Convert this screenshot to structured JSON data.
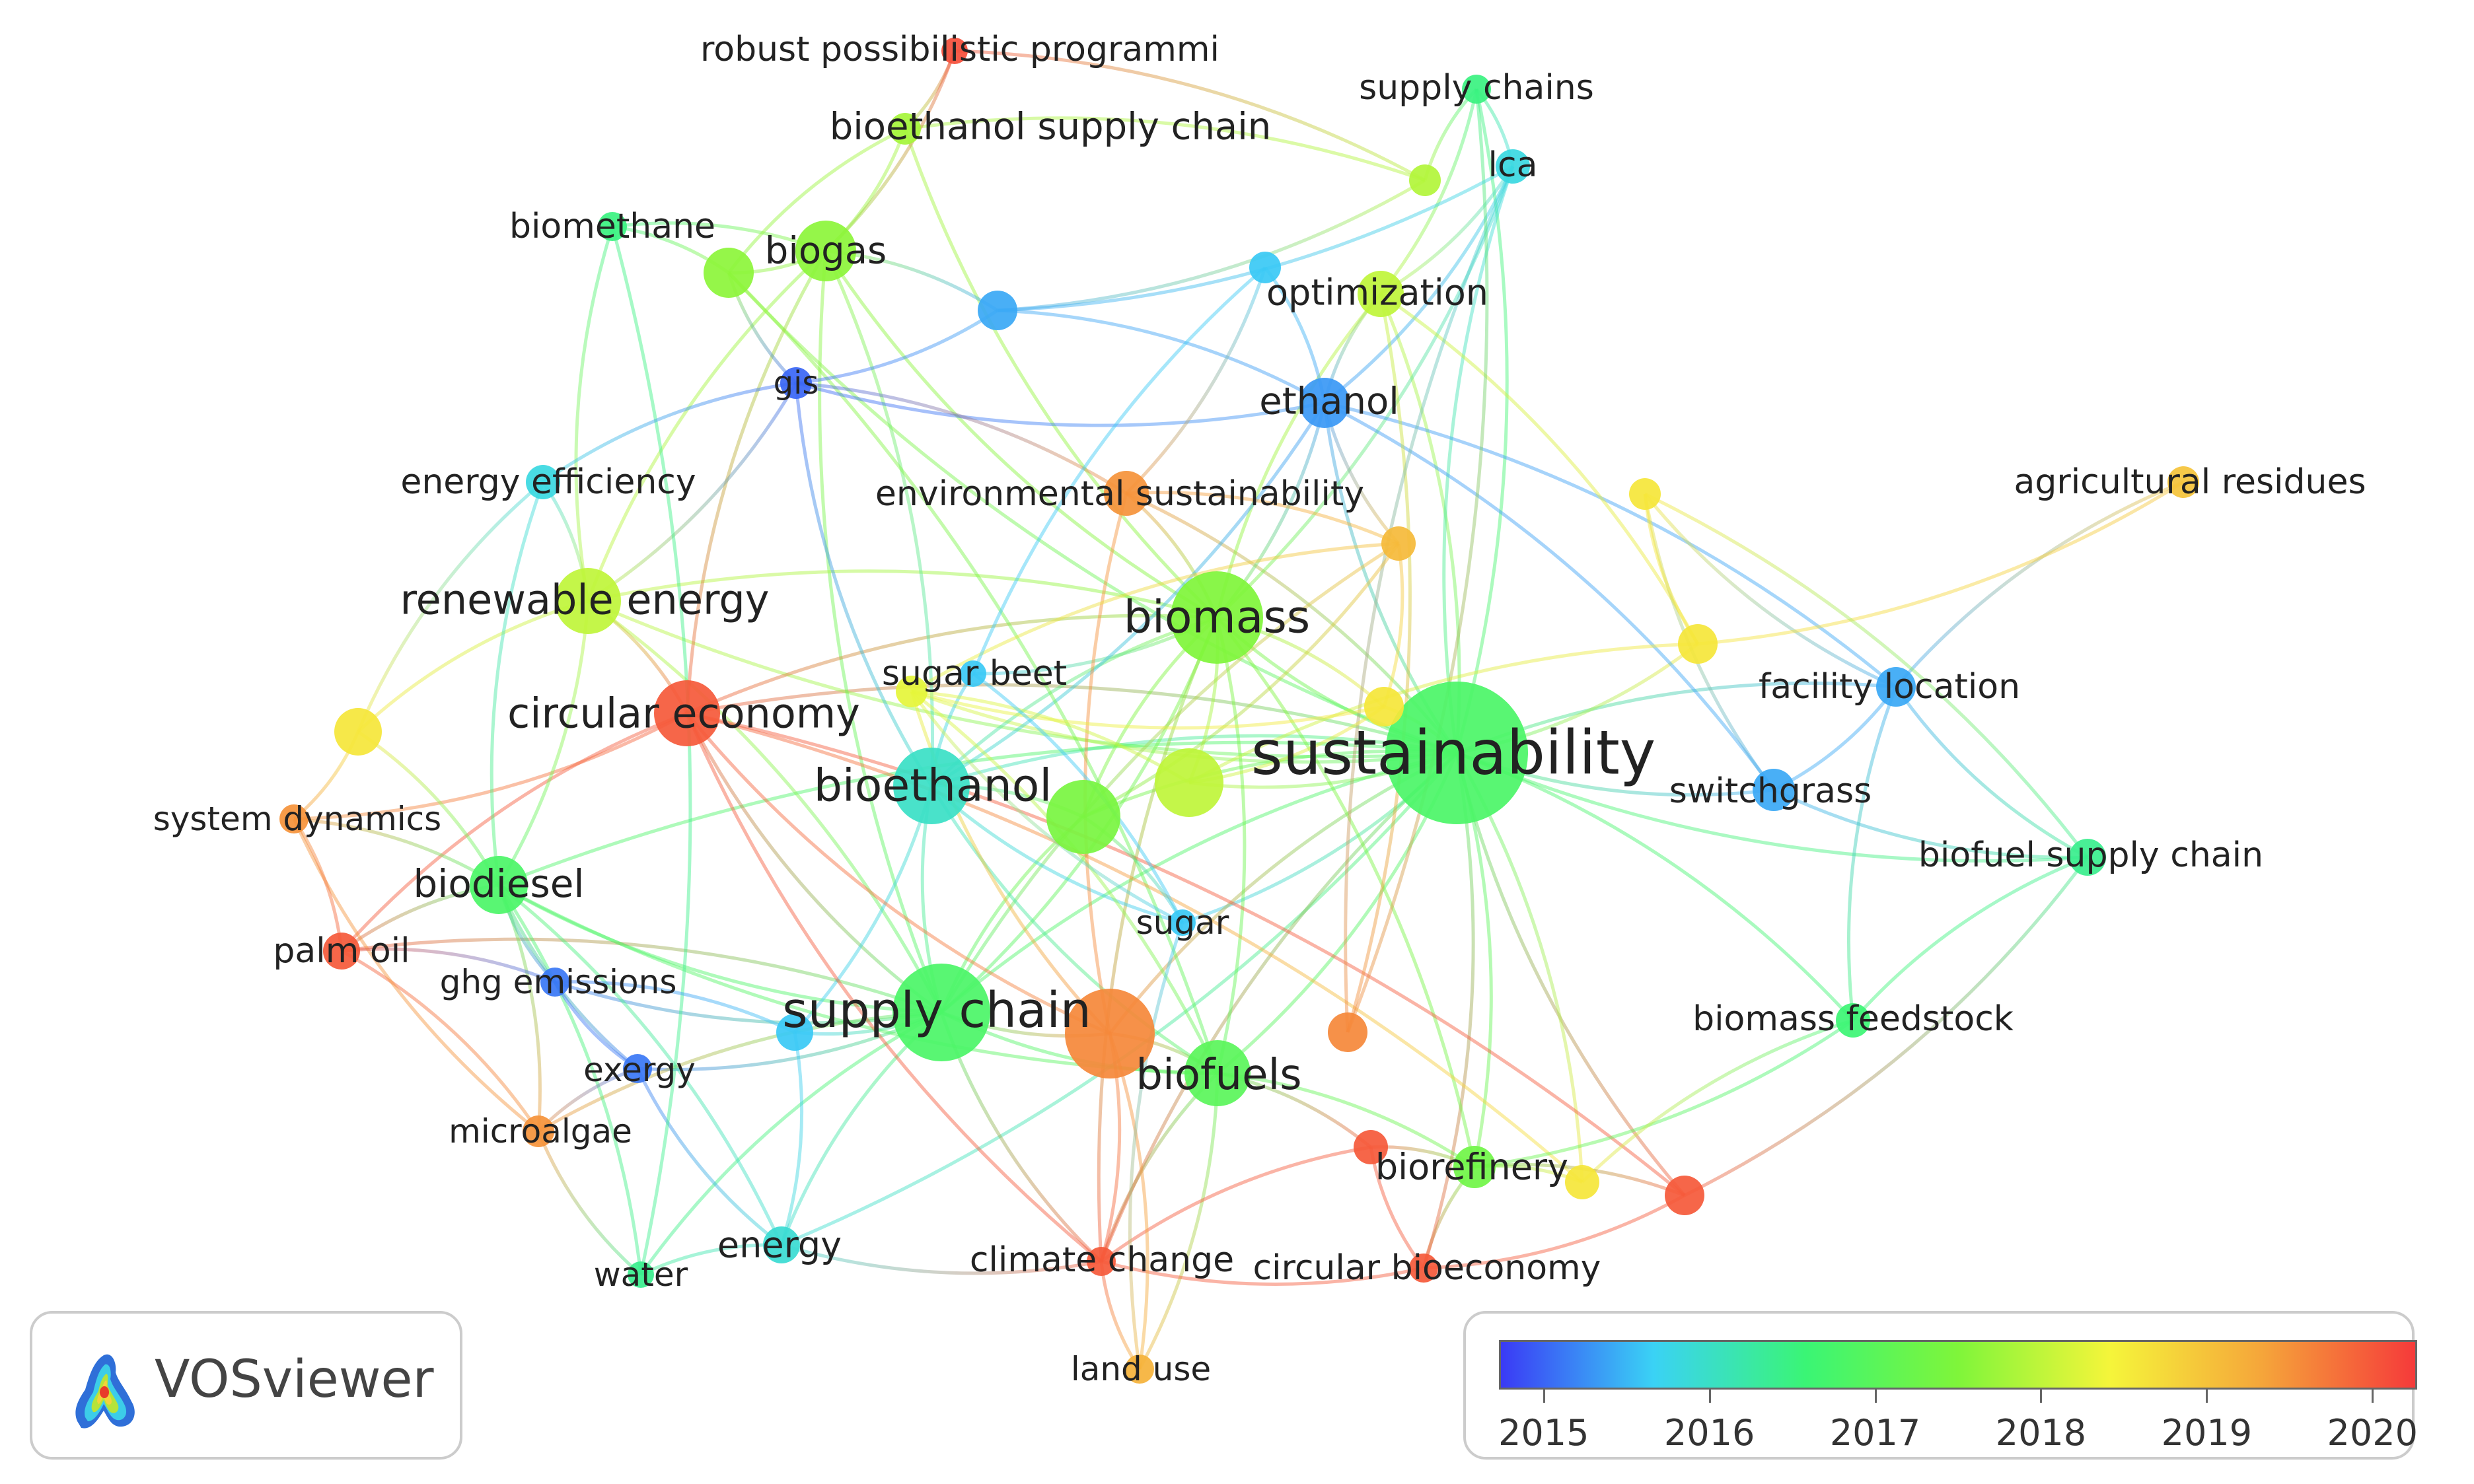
{
  "logo": {
    "text": "VOSviewer",
    "icon": "vosviewer-logo-icon"
  },
  "legend": {
    "labels": [
      "2015",
      "2016",
      "2017",
      "2018",
      "2019",
      "2020"
    ],
    "min": 2014.73,
    "max": 2020.27,
    "colors": [
      "#3a3af5",
      "#3ad2f5",
      "#3af575",
      "#7ff53a",
      "#f5f53a",
      "#f5a53a",
      "#f53a3a"
    ]
  },
  "chart_data": {
    "type": "network",
    "nodes": [
      {
        "id": "sustainability",
        "label": "sustainability",
        "score": 2016.8
      },
      {
        "id": "supply chain",
        "label": "supply chain",
        "score": 2016.8
      },
      {
        "id": "biomass",
        "label": "biomass",
        "score": 2017.5
      },
      {
        "id": "bioethanol",
        "label": "bioethanol",
        "score": 2016.0
      },
      {
        "id": "biofuels",
        "label": "biofuels",
        "score": 2017.0
      },
      {
        "id": "circular economy",
        "label": "circular economy",
        "score": 2020.0
      },
      {
        "id": "renewable energy",
        "label": "renewable energy",
        "score": 2018.0
      },
      {
        "id": "biodiesel",
        "label": "biodiesel",
        "score": 2016.8
      },
      {
        "id": "biogas",
        "label": "biogas",
        "score": 2017.6
      },
      {
        "id": "ethanol",
        "label": "ethanol",
        "score": 2015.3
      },
      {
        "id": "optimization",
        "label": "optimization",
        "score": 2018.0
      },
      {
        "id": "biorefinery",
        "label": "biorefinery",
        "score": 2017.3
      },
      {
        "id": "switchgrass",
        "label": "switchgrass",
        "score": 2015.4
      },
      {
        "id": "facility location",
        "label": "facility location",
        "score": 2015.4
      },
      {
        "id": "biofuel supply chain",
        "label": "biofuel supply chain",
        "score": 2016.4
      },
      {
        "id": "biomass feedstock",
        "label": "biomass feedstock",
        "score": 2016.6
      },
      {
        "id": "agricultural residues",
        "label": "agricultural residues",
        "score": 2019.0
      },
      {
        "id": "environmental sustainability",
        "label": "environmental sustainability",
        "score": 2019.5
      },
      {
        "id": "sugar beet",
        "label": "sugar beet",
        "score": 2015.6
      },
      {
        "id": "sugar",
        "label": "sugar",
        "score": 2015.6
      },
      {
        "id": "energy efficiency",
        "label": "energy efficiency",
        "score": 2015.8
      },
      {
        "id": "system dynamics",
        "label": "system dynamics",
        "score": 2019.5
      },
      {
        "id": "palm oil",
        "label": "palm oil",
        "score": 2020.0
      },
      {
        "id": "ghg emissions",
        "label": "ghg emissions",
        "score": 2015.1
      },
      {
        "id": "exergy",
        "label": "exergy",
        "score": 2015.1
      },
      {
        "id": "microalgae",
        "label": "microalgae",
        "score": 2019.5
      },
      {
        "id": "energy",
        "label": "energy",
        "score": 2015.9
      },
      {
        "id": "water",
        "label": "water",
        "score": 2016.4
      },
      {
        "id": "climate change",
        "label": "climate change",
        "score": 2020.0
      },
      {
        "id": "land use",
        "label": "land use",
        "score": 2019.2
      },
      {
        "id": "circular bioeconomy",
        "label": "circular bioeconomy",
        "score": 2020.0
      },
      {
        "id": "gis",
        "label": "gis",
        "score": 2015.0
      },
      {
        "id": "biomethane",
        "label": "biomethane",
        "score": 2016.5
      },
      {
        "id": "bioethanol supply chain",
        "label": "bioethanol supply chain",
        "score": 2017.8
      },
      {
        "id": "robust possibilistic programmi",
        "label": "robust possibilistic programmi",
        "score": 2020.1
      },
      {
        "id": "supply chains",
        "label": "supply chains",
        "score": 2016.5
      },
      {
        "id": "lca",
        "label": "lca",
        "score": 2015.8
      },
      {
        "id": "n1",
        "label": "",
        "score": 2017.4
      },
      {
        "id": "n2",
        "label": "",
        "score": 2018.0
      },
      {
        "id": "n3",
        "label": "",
        "score": 2018.6
      },
      {
        "id": "n4",
        "label": "",
        "score": 2019.6
      },
      {
        "id": "n5",
        "label": "",
        "score": 2017.6
      },
      {
        "id": "n6",
        "label": "",
        "score": 2018.3
      },
      {
        "id": "n7",
        "label": "",
        "score": 2020.0
      },
      {
        "id": "n8",
        "label": "",
        "score": 2020.0
      },
      {
        "id": "n9",
        "label": "",
        "score": 2018.6
      },
      {
        "id": "n10",
        "label": "",
        "score": 2018.6
      },
      {
        "id": "n11",
        "label": "",
        "score": 2015.4
      },
      {
        "id": "n12",
        "label": "",
        "score": 2015.6
      },
      {
        "id": "n13",
        "label": "",
        "score": 2019.1
      },
      {
        "id": "n14",
        "label": "",
        "score": 2018.6
      },
      {
        "id": "n15",
        "label": "",
        "score": 2018.6
      },
      {
        "id": "n16",
        "label": "",
        "score": 2017.9
      },
      {
        "id": "n17",
        "label": "",
        "score": 2019.6
      },
      {
        "id": "n18",
        "label": "",
        "score": 2015.6
      }
    ],
    "links": [
      [
        "sustainability",
        "supply chain"
      ],
      [
        "sustainability",
        "biomass"
      ],
      [
        "sustainability",
        "bioethanol"
      ],
      [
        "sustainability",
        "biofuels"
      ],
      [
        "sustainability",
        "circular economy"
      ],
      [
        "sustainability",
        "renewable energy"
      ],
      [
        "sustainability",
        "biodiesel"
      ],
      [
        "sustainability",
        "ethanol"
      ],
      [
        "sustainability",
        "optimization"
      ],
      [
        "sustainability",
        "biorefinery"
      ],
      [
        "sustainability",
        "switchgrass"
      ],
      [
        "sustainability",
        "facility location"
      ],
      [
        "sustainability",
        "biofuel supply chain"
      ],
      [
        "sustainability",
        "biomass feedstock"
      ],
      [
        "sustainability",
        "environmental sustainability"
      ],
      [
        "sustainability",
        "energy"
      ],
      [
        "sustainability",
        "climate change"
      ],
      [
        "sustainability",
        "circular bioeconomy"
      ],
      [
        "sustainability",
        "supply chains"
      ],
      [
        "sustainability",
        "lca"
      ],
      [
        "sustainability",
        "n1"
      ],
      [
        "sustainability",
        "n2"
      ],
      [
        "sustainability",
        "n3"
      ],
      [
        "sustainability",
        "n6"
      ],
      [
        "sustainability",
        "n8"
      ],
      [
        "sustainability",
        "n9"
      ],
      [
        "sustainability",
        "n10"
      ],
      [
        "sustainability",
        "sugar"
      ],
      [
        "sustainability",
        "n4"
      ],
      [
        "sustainability",
        "n5"
      ],
      [
        "supply chain",
        "biomass"
      ],
      [
        "supply chain",
        "bioethanol"
      ],
      [
        "supply chain",
        "biofuels"
      ],
      [
        "supply chain",
        "circular economy"
      ],
      [
        "supply chain",
        "renewable energy"
      ],
      [
        "supply chain",
        "biodiesel"
      ],
      [
        "supply chain",
        "energy"
      ],
      [
        "supply chain",
        "exergy"
      ],
      [
        "supply chain",
        "climate change"
      ],
      [
        "supply chain",
        "n1"
      ],
      [
        "supply chain",
        "n4"
      ],
      [
        "supply chain",
        "biogas"
      ],
      [
        "supply chain",
        "palm oil"
      ],
      [
        "supply chain",
        "ghg emissions"
      ],
      [
        "supply chain",
        "microalgae"
      ],
      [
        "supply chain",
        "n13"
      ],
      [
        "supply chain",
        "water"
      ],
      [
        "supply chain",
        "n12"
      ],
      [
        "biomass",
        "bioethanol"
      ],
      [
        "biomass",
        "biofuels"
      ],
      [
        "biomass",
        "renewable energy"
      ],
      [
        "biomass",
        "biogas"
      ],
      [
        "biomass",
        "ethanol"
      ],
      [
        "biomass",
        "optimization"
      ],
      [
        "biomass",
        "circular economy"
      ],
      [
        "biomass",
        "biorefinery"
      ],
      [
        "biomass",
        "n1"
      ],
      [
        "biomass",
        "n2"
      ],
      [
        "biomass",
        "environmental sustainability"
      ],
      [
        "biomass",
        "bioethanol supply chain"
      ],
      [
        "biomass",
        "lca"
      ],
      [
        "biomass",
        "n3"
      ],
      [
        "biomass",
        "climate change"
      ],
      [
        "biomass",
        "sugar beet"
      ],
      [
        "bioethanol",
        "biofuels"
      ],
      [
        "bioethanol",
        "sugar beet"
      ],
      [
        "bioethanol",
        "sugar"
      ],
      [
        "bioethanol",
        "n1"
      ],
      [
        "bioethanol",
        "biogas"
      ],
      [
        "bioethanol",
        "gis"
      ],
      [
        "bioethanol",
        "ethanol"
      ],
      [
        "bioethanol",
        "n12"
      ],
      [
        "biofuels",
        "n4"
      ],
      [
        "biofuels",
        "biorefinery"
      ],
      [
        "biofuels",
        "climate change"
      ],
      [
        "biofuels",
        "land use"
      ],
      [
        "biofuels",
        "n5"
      ],
      [
        "biofuels",
        "n7"
      ],
      [
        "biofuels",
        "n6"
      ],
      [
        "biofuels",
        "biodiesel"
      ],
      [
        "circular economy",
        "renewable energy"
      ],
      [
        "circular economy",
        "n9"
      ],
      [
        "circular economy",
        "palm oil"
      ],
      [
        "circular economy",
        "system dynamics"
      ],
      [
        "circular economy",
        "n4"
      ],
      [
        "circular economy",
        "n8"
      ],
      [
        "circular economy",
        "climate change"
      ],
      [
        "circular economy",
        "biogas"
      ],
      [
        "renewable energy",
        "energy efficiency"
      ],
      [
        "renewable energy",
        "biogas"
      ],
      [
        "renewable energy",
        "n14"
      ],
      [
        "renewable energy",
        "biomethane"
      ],
      [
        "renewable energy",
        "gis"
      ],
      [
        "renewable energy",
        "biodiesel"
      ],
      [
        "biodiesel",
        "palm oil"
      ],
      [
        "biodiesel",
        "microalgae"
      ],
      [
        "biodiesel",
        "ghg emissions"
      ],
      [
        "biodiesel",
        "water"
      ],
      [
        "biodiesel",
        "exergy"
      ],
      [
        "biodiesel",
        "energy"
      ],
      [
        "biodiesel",
        "n14"
      ],
      [
        "biodiesel",
        "energy efficiency"
      ],
      [
        "biogas",
        "biomethane"
      ],
      [
        "biogas",
        "n5"
      ],
      [
        "biogas",
        "bioethanol supply chain"
      ],
      [
        "biogas",
        "n11"
      ],
      [
        "n5",
        "biomethane"
      ],
      [
        "n5",
        "bioethanol supply chain"
      ],
      [
        "n5",
        "gis"
      ],
      [
        "ethanol",
        "optimization"
      ],
      [
        "ethanol",
        "lca"
      ],
      [
        "ethanol",
        "switchgrass"
      ],
      [
        "ethanol",
        "n11"
      ],
      [
        "ethanol",
        "gis"
      ],
      [
        "ethanol",
        "n18"
      ],
      [
        "ethanol",
        "facility location"
      ],
      [
        "ethanol",
        "n13"
      ],
      [
        "optimization",
        "n17"
      ],
      [
        "optimization",
        "supply chains"
      ],
      [
        "optimization",
        "n10"
      ],
      [
        "optimization",
        "lca"
      ],
      [
        "n17",
        "lca"
      ],
      [
        "n17",
        "supply chains"
      ],
      [
        "supply chains",
        "lca"
      ],
      [
        "bioethanol supply chain",
        "robust possibilistic programmi"
      ],
      [
        "robust possibilistic programmi",
        "n16"
      ],
      [
        "n16",
        "bioethanol supply chain"
      ],
      [
        "robust possibilistic programmi",
        "biogas"
      ],
      [
        "switchgrass",
        "facility location"
      ],
      [
        "switchgrass",
        "n15"
      ],
      [
        "switchgrass",
        "biofuel supply chain"
      ],
      [
        "facility location",
        "agricultural residues"
      ],
      [
        "facility location",
        "biofuel supply chain"
      ],
      [
        "facility location",
        "n15"
      ],
      [
        "facility location",
        "biomass feedstock"
      ],
      [
        "biofuel supply chain",
        "n8"
      ],
      [
        "biofuel supply chain",
        "biomass feedstock"
      ],
      [
        "biomass feedstock",
        "biorefinery"
      ],
      [
        "biomass feedstock",
        "n9"
      ],
      [
        "biorefinery",
        "n9"
      ],
      [
        "biorefinery",
        "circular bioeconomy"
      ],
      [
        "biorefinery",
        "n8"
      ],
      [
        "biorefinery",
        "n7"
      ],
      [
        "circular bioeconomy",
        "n7"
      ],
      [
        "circular bioeconomy",
        "n8"
      ],
      [
        "circular bioeconomy",
        "climate change"
      ],
      [
        "climate change",
        "land use"
      ],
      [
        "climate change",
        "energy"
      ],
      [
        "climate change",
        "n4"
      ],
      [
        "climate change",
        "n7"
      ],
      [
        "land use",
        "n4"
      ],
      [
        "land use",
        "sugar"
      ],
      [
        "energy",
        "water"
      ],
      [
        "energy",
        "exergy"
      ],
      [
        "energy",
        "n12"
      ],
      [
        "water",
        "microalgae"
      ],
      [
        "water",
        "biomethane"
      ],
      [
        "microalgae",
        "exergy"
      ],
      [
        "microalgae",
        "palm oil"
      ],
      [
        "microalgae",
        "system dynamics"
      ],
      [
        "palm oil",
        "system dynamics"
      ],
      [
        "palm oil",
        "ghg emissions"
      ],
      [
        "system dynamics",
        "n14"
      ],
      [
        "system dynamics",
        "biodiesel"
      ],
      [
        "energy efficiency",
        "n14"
      ],
      [
        "energy efficiency",
        "gis"
      ],
      [
        "ghg emissions",
        "exergy"
      ],
      [
        "ghg emissions",
        "n12"
      ],
      [
        "gis",
        "n11"
      ],
      [
        "gis",
        "environmental sustainability"
      ],
      [
        "environmental sustainability",
        "n18"
      ],
      [
        "environmental sustainability",
        "n13"
      ],
      [
        "environmental sustainability",
        "n4"
      ],
      [
        "n13",
        "n3"
      ],
      [
        "n13",
        "n6"
      ],
      [
        "n13",
        "n1"
      ],
      [
        "n2",
        "n6"
      ],
      [
        "n2",
        "n10"
      ],
      [
        "n2",
        "n3"
      ],
      [
        "n3",
        "n6"
      ],
      [
        "n6",
        "n4"
      ],
      [
        "n10",
        "n15"
      ],
      [
        "n10",
        "agricultural residues"
      ],
      [
        "n15",
        "biofuel supply chain"
      ],
      [
        "sugar",
        "sugar beet"
      ],
      [
        "sugar",
        "n6"
      ],
      [
        "sugar",
        "n1"
      ],
      [
        "sugar beet",
        "n18"
      ],
      [
        "n11",
        "n16"
      ],
      [
        "n16",
        "supply chains"
      ],
      [
        "n11",
        "lca"
      ]
    ]
  }
}
